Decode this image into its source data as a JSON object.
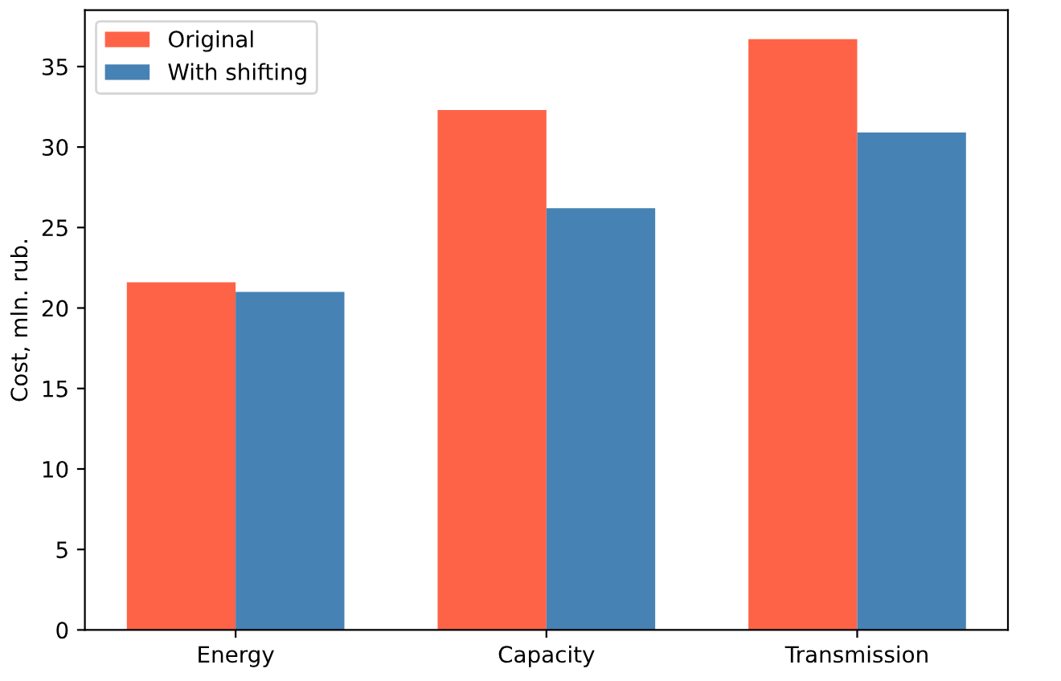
{
  "chart_data": {
    "type": "bar",
    "ylabel": "Cost, mln. rub.",
    "categories": [
      "Energy",
      "Capacity",
      "Transmission"
    ],
    "series": [
      {
        "name": "Original",
        "color": "#ff6347",
        "values": [
          21.6,
          32.3,
          36.7
        ]
      },
      {
        "name": "With shifting",
        "color": "#4682b4",
        "values": [
          21.0,
          26.2,
          30.9
        ]
      }
    ],
    "ylim": [
      0,
      38.5
    ],
    "yticks": [
      0,
      5,
      10,
      15,
      20,
      25,
      30,
      35
    ],
    "grid": false,
    "legend": "top left"
  }
}
